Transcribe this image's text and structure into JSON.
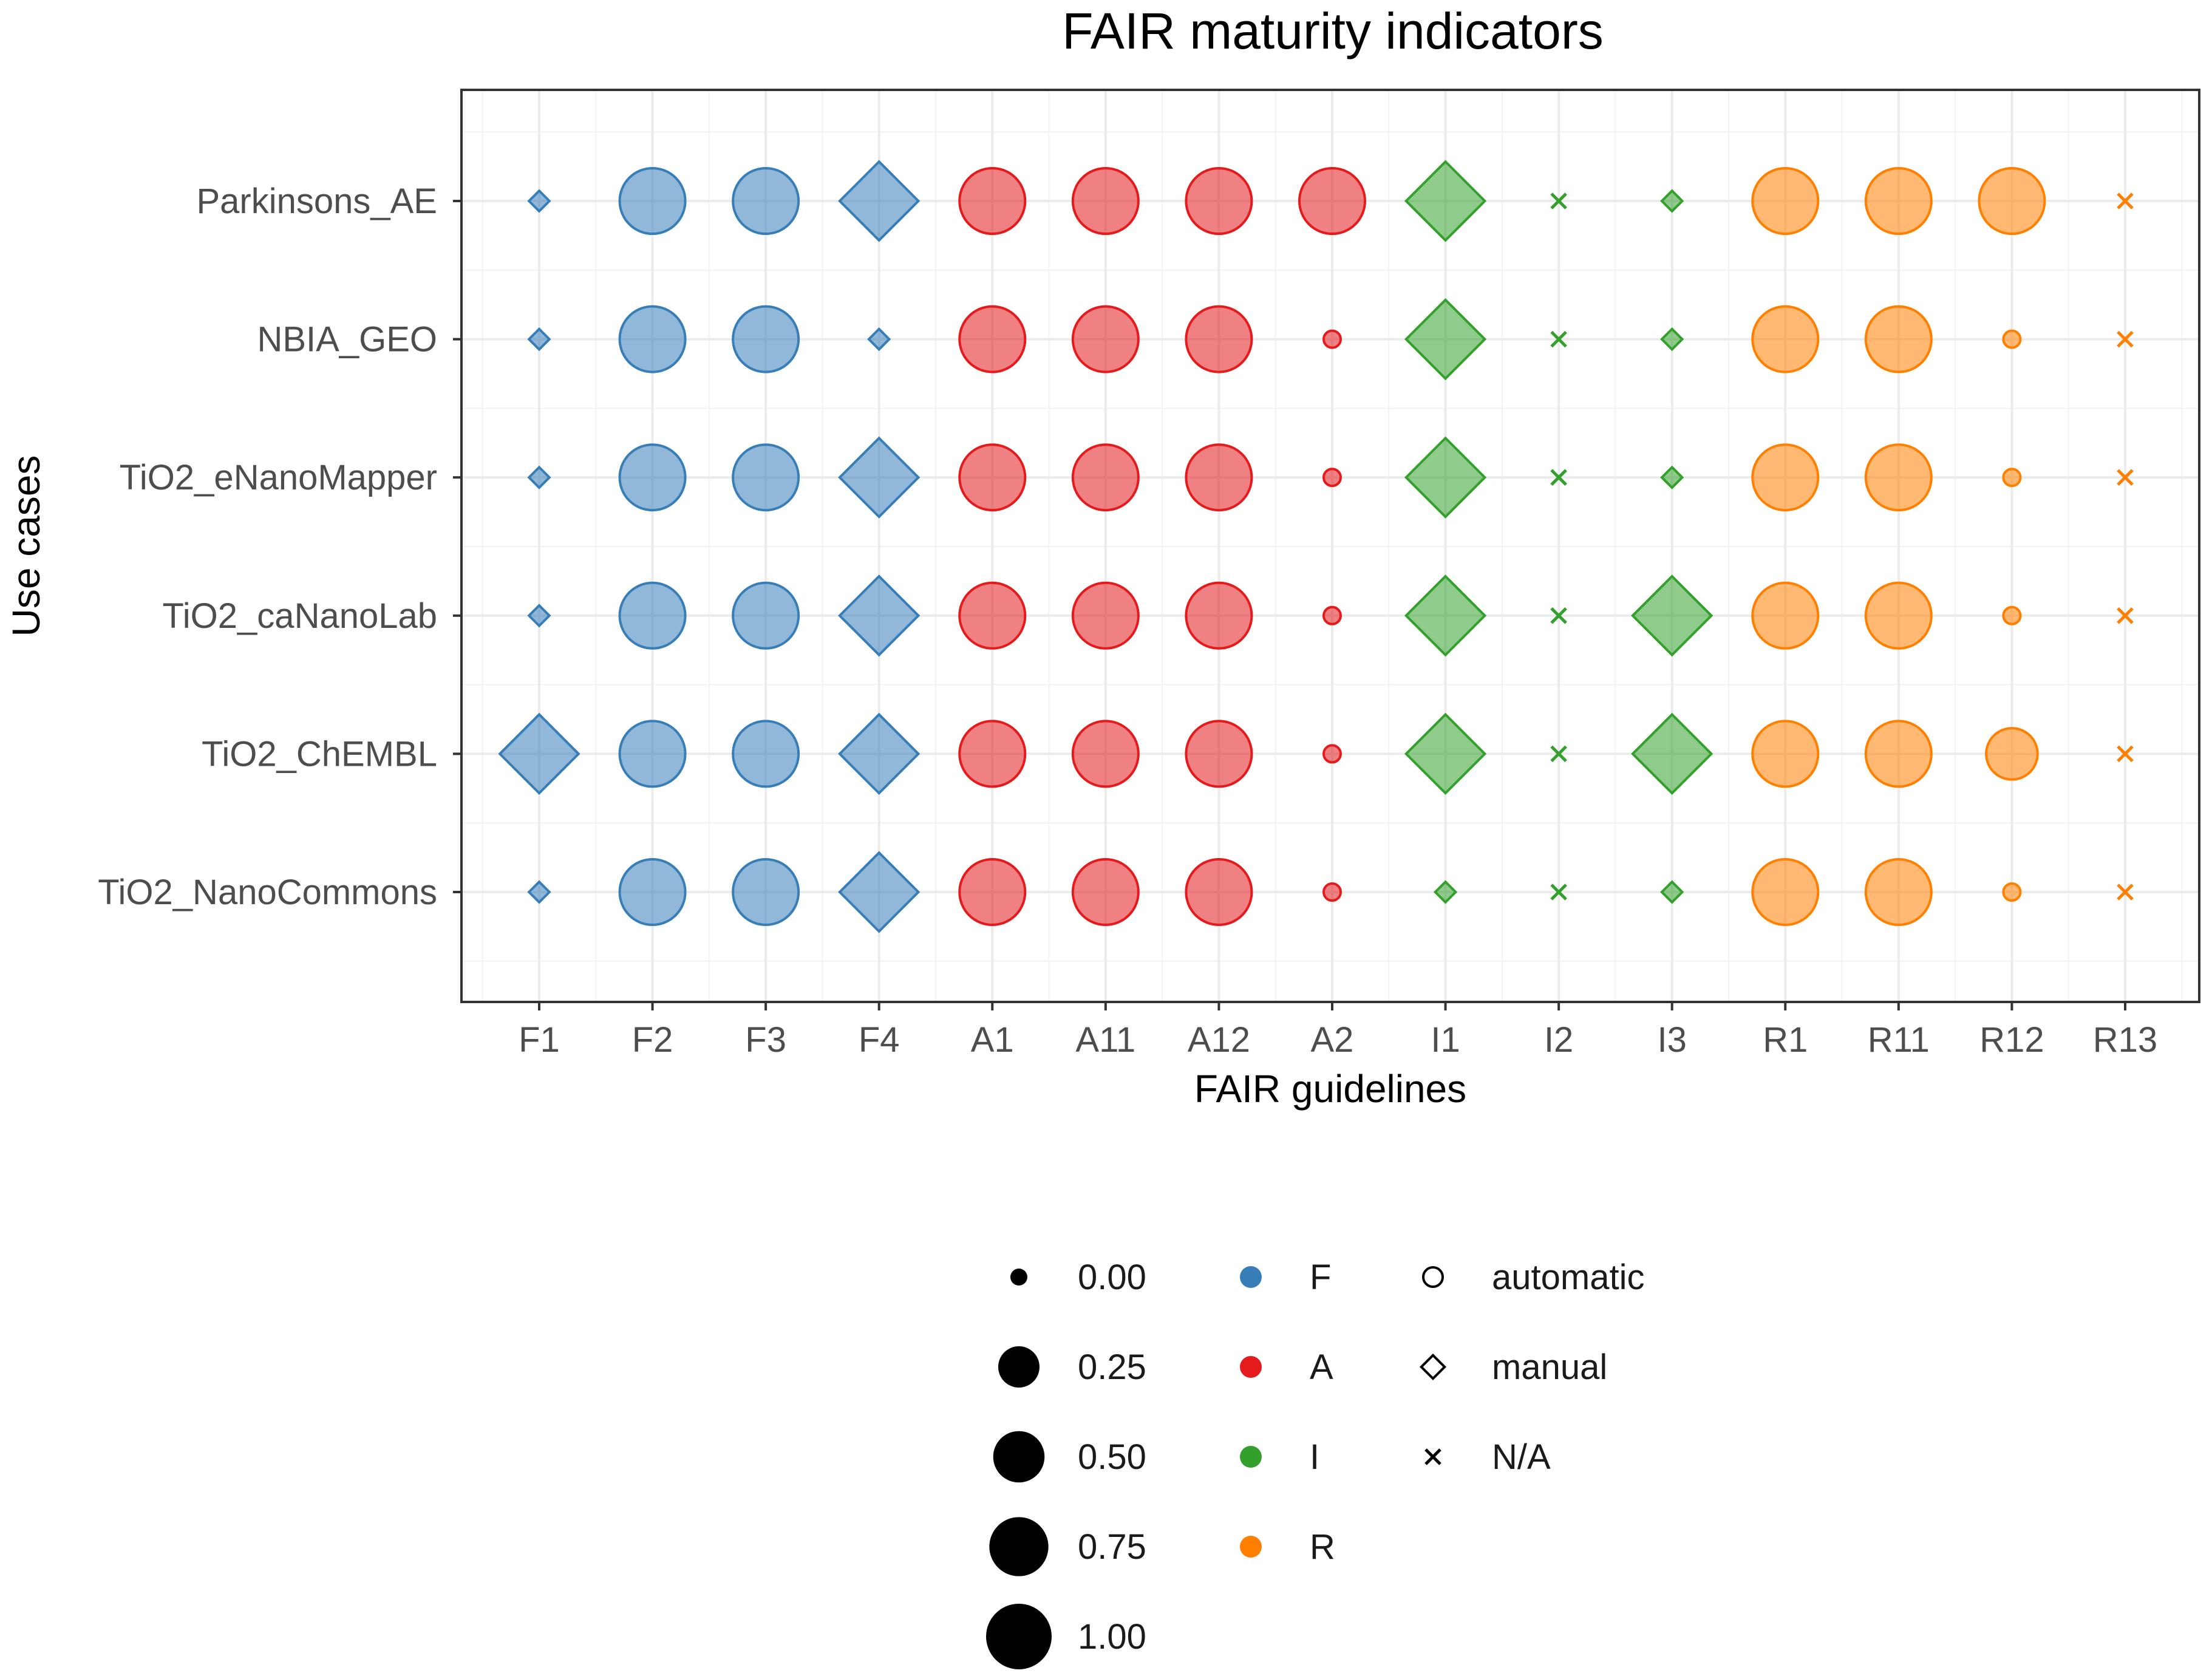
{
  "chart_data": {
    "type": "scatter",
    "title": "FAIR maturity indicators",
    "xlabel": "FAIR guidelines",
    "ylabel": "Use cases",
    "grid": true,
    "x_categories": [
      "F1",
      "F2",
      "F3",
      "F4",
      "A1",
      "A11",
      "A12",
      "A2",
      "I1",
      "I2",
      "I3",
      "R1",
      "R11",
      "R12",
      "R13"
    ],
    "y_categories": [
      "Parkinsons_AE",
      "NBIA_GEO",
      "TiO2_eNanoMapper",
      "TiO2_caNanoLab",
      "TiO2_ChEMBL",
      "TiO2_NanoCommons"
    ],
    "colors": {
      "F": "#377eb8",
      "A": "#e41a1c",
      "I": "#33a02c",
      "R": "#ff7f00"
    },
    "series": [
      {
        "name": "Parkinsons_AE",
        "values": [
          0,
          1,
          1,
          1,
          1,
          1,
          1,
          1,
          1,
          null,
          0,
          1,
          1,
          1,
          null
        ]
      },
      {
        "name": "NBIA_GEO",
        "values": [
          0,
          1,
          1,
          0,
          1,
          1,
          1,
          0,
          1,
          null,
          0,
          1,
          1,
          0,
          null
        ]
      },
      {
        "name": "TiO2_eNanoMapper",
        "values": [
          0,
          1,
          1,
          1,
          1,
          1,
          1,
          0,
          1,
          null,
          0,
          1,
          1,
          0,
          null
        ]
      },
      {
        "name": "TiO2_caNanoLab",
        "values": [
          0,
          1,
          1,
          1,
          1,
          1,
          1,
          0,
          1,
          null,
          1,
          1,
          1,
          0,
          null
        ]
      },
      {
        "name": "TiO2_ChEMBL",
        "values": [
          1,
          1,
          1,
          1,
          1,
          1,
          1,
          0,
          1,
          null,
          1,
          1,
          1,
          0.5,
          null
        ]
      },
      {
        "name": "TiO2_NanoCommons",
        "values": [
          0,
          1,
          1,
          1,
          1,
          1,
          1,
          0,
          0,
          null,
          0,
          1,
          1,
          0,
          null
        ]
      }
    ],
    "assessment": {
      "F1": "manual",
      "F2": "automatic",
      "F3": "automatic",
      "F4": "manual",
      "A1": "automatic",
      "A11": "automatic",
      "A12": "automatic",
      "A2": "automatic",
      "I1": "manual",
      "I2": "N/A",
      "I3": "manual",
      "R1": "automatic",
      "R11": "automatic",
      "R12": "automatic",
      "R13": "N/A"
    },
    "legend": {
      "position": "bottom",
      "size": {
        "values": [
          0.0,
          0.25,
          0.5,
          0.75,
          1.0
        ],
        "labels": [
          "0.00",
          "0.25",
          "0.50",
          "0.75",
          "1.00"
        ]
      },
      "color": {
        "labels": [
          "F",
          "A",
          "I",
          "R"
        ]
      },
      "shape": {
        "labels": [
          "automatic",
          "manual",
          "N/A"
        ]
      }
    }
  }
}
